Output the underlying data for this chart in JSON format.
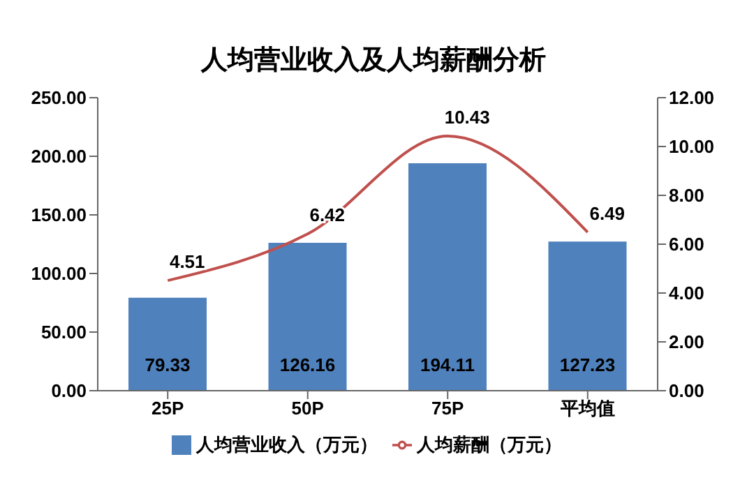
{
  "chart_data": {
    "type": "bar",
    "title": "人均营业收入及人均薪酬分析",
    "categories": [
      "25P",
      "50P",
      "75P",
      "平均值"
    ],
    "series": [
      {
        "name": "人均营业收入（万元）",
        "color": "#4f81bd",
        "values": [
          79.33,
          126.16,
          194.11,
          127.23
        ]
      },
      {
        "name": "人均薪酬（万元）",
        "type": "line",
        "axis": "y2",
        "color": "#c0504d",
        "values": [
          4.51,
          6.42,
          10.43,
          6.49
        ]
      }
    ],
    "ylim": [
      0,
      250
    ],
    "yticks": [
      {
        "value": 0,
        "label": "0.00"
      },
      {
        "value": 50,
        "label": "50.00"
      },
      {
        "value": 100,
        "label": "100.00"
      },
      {
        "value": 150,
        "label": "150.00"
      },
      {
        "value": 200,
        "label": "200.00"
      },
      {
        "value": 250,
        "label": "250.00"
      }
    ],
    "y2lim": [
      0,
      12
    ],
    "y2ticks": [
      {
        "value": 0,
        "label": "0.00"
      },
      {
        "value": 2,
        "label": "2.00"
      },
      {
        "value": 4,
        "label": "4.00"
      },
      {
        "value": 6,
        "label": "6.00"
      },
      {
        "value": 8,
        "label": "8.00"
      },
      {
        "value": 10,
        "label": "10.00"
      },
      {
        "value": 12,
        "label": "12.00"
      }
    ],
    "data_labels": true,
    "legend": "bottom",
    "grid": false,
    "marker": "none",
    "line_style": "solid"
  }
}
